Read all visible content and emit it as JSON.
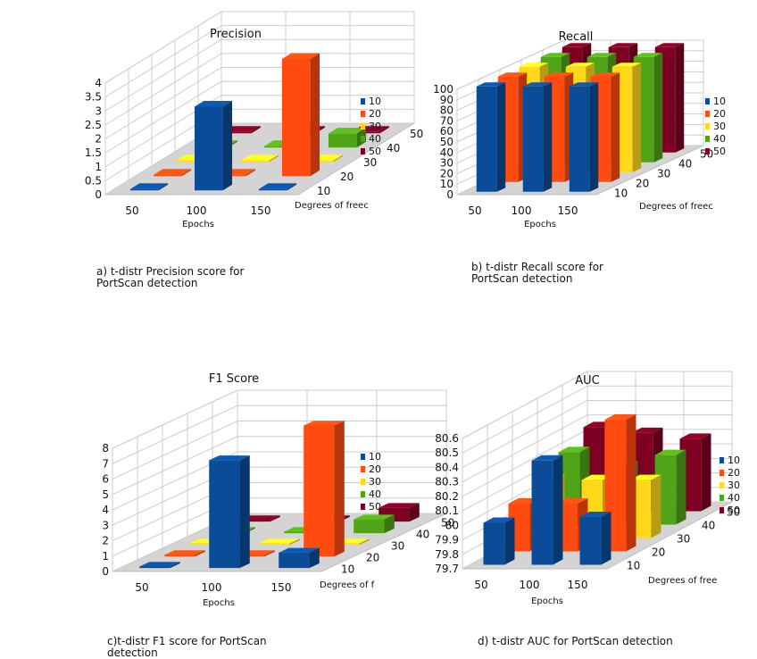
{
  "legend_colors": {
    "10": "#0a4c98",
    "20": "#ff4a10",
    "30": "#ffd81a",
    "40": "#4fa418",
    "50": "#7d0022"
  },
  "charts": [
    {
      "caption": "a) t-distr Precision score for\nPortScan detection",
      "chart_data": {
        "type": "bar",
        "title": "Precision",
        "xlabel": "Epochs",
        "zlabel": "Degrees of freedom",
        "xlabel_visible": "Epochs",
        "zlabel_visible": "Degrees of freec",
        "categories": [
          "50",
          "100",
          "150"
        ],
        "depth_labels": [
          "10",
          "20",
          "30",
          "40",
          "50"
        ],
        "y_ticks": [
          "0",
          "0.5",
          "1",
          "1.5",
          "2",
          "2.5",
          "3",
          "3.5",
          "4"
        ],
        "ylim": [
          0,
          4
        ],
        "series": [
          {
            "name": "10",
            "values": [
              0,
              3.0,
              0
            ]
          },
          {
            "name": "20",
            "values": [
              0,
              0,
              4.2
            ]
          },
          {
            "name": "30",
            "values": [
              0,
              0,
              0
            ]
          },
          {
            "name": "40",
            "values": [
              0,
              0,
              0.5
            ]
          },
          {
            "name": "50",
            "values": [
              0,
              0,
              0
            ]
          }
        ],
        "legend": [
          "10",
          "20",
          "30",
          "40",
          "50"
        ]
      }
    },
    {
      "caption": "b)  t-distr Recall score for\nPortScan detection",
      "chart_data": {
        "type": "bar",
        "title": "Recall",
        "xlabel": "Epochs",
        "zlabel": "Degrees of freedom",
        "xlabel_visible": "Epochs",
        "zlabel_visible": "Degrees of freec",
        "categories": [
          "50",
          "100",
          "150"
        ],
        "depth_labels": [
          "10",
          "20",
          "30",
          "40",
          "50"
        ],
        "y_ticks": [
          "0",
          "10",
          "20",
          "30",
          "40",
          "50",
          "60",
          "70",
          "80",
          "90",
          "100"
        ],
        "ylim": [
          0,
          100
        ],
        "series": [
          {
            "name": "10",
            "values": [
              100,
              100,
              100
            ]
          },
          {
            "name": "20",
            "values": [
              100,
              100,
              100
            ]
          },
          {
            "name": "30",
            "values": [
              100,
              100,
              100
            ]
          },
          {
            "name": "40",
            "values": [
              100,
              100,
              100
            ]
          },
          {
            "name": "50",
            "values": [
              100,
              100,
              100
            ]
          }
        ],
        "legend": [
          "10",
          "20",
          "30",
          "40",
          "50"
        ]
      }
    },
    {
      "caption": "c)t-distr F1 score for PortScan\ndetection",
      "chart_data": {
        "type": "bar",
        "title": "F1 Score",
        "xlabel": "Epochs",
        "zlabel": "Degrees of freedom",
        "xlabel_visible": "Epochs",
        "zlabel_visible": "Degrees of f",
        "categories": [
          "50",
          "100",
          "150"
        ],
        "depth_labels": [
          "10",
          "20",
          "30",
          "40",
          "50"
        ],
        "y_ticks": [
          "0",
          "1",
          "2",
          "3",
          "4",
          "5",
          "6",
          "7",
          "8"
        ],
        "ylim": [
          0,
          8
        ],
        "series": [
          {
            "name": "10",
            "values": [
              0,
              7.0,
              1.0
            ]
          },
          {
            "name": "20",
            "values": [
              0,
              0,
              8.5
            ]
          },
          {
            "name": "30",
            "values": [
              0,
              0,
              0
            ]
          },
          {
            "name": "40",
            "values": [
              0,
              0,
              0.9
            ]
          },
          {
            "name": "50",
            "values": [
              0,
              0,
              0.9
            ]
          }
        ],
        "legend": [
          "10",
          "20",
          "30",
          "40",
          "50"
        ]
      }
    },
    {
      "caption": "d) t-distr AUC for  PortScan detection",
      "chart_data": {
        "type": "bar",
        "title": "AUC",
        "xlabel": "Epochs",
        "zlabel": "Degrees of freedom",
        "xlabel_visible": "Epochs",
        "zlabel_visible": "Degrees of free",
        "categories": [
          "50",
          "100",
          "150"
        ],
        "depth_labels": [
          "10",
          "20",
          "30",
          "40",
          "50"
        ],
        "y_ticks": [
          "79.7",
          "79.8",
          "79.9",
          "80",
          "80.1",
          "80.2",
          "80.3",
          "80.4",
          "80.5",
          "80.6"
        ],
        "ylim": [
          79.7,
          80.6
        ],
        "series": [
          {
            "name": "10",
            "values": [
              79.99,
              80.42,
              80.03
            ]
          },
          {
            "name": "20",
            "values": [
              80.03,
              80.03,
              80.61
            ]
          },
          {
            "name": "30",
            "values": [
              80.1,
              80.1,
              80.1
            ]
          },
          {
            "name": "40",
            "values": [
              80.2,
              80.1,
              80.18
            ]
          },
          {
            "name": "50",
            "values": [
              80.28,
              80.24,
              80.2
            ]
          }
        ],
        "legend": [
          "10",
          "20",
          "30",
          "40",
          "50"
        ]
      }
    }
  ]
}
